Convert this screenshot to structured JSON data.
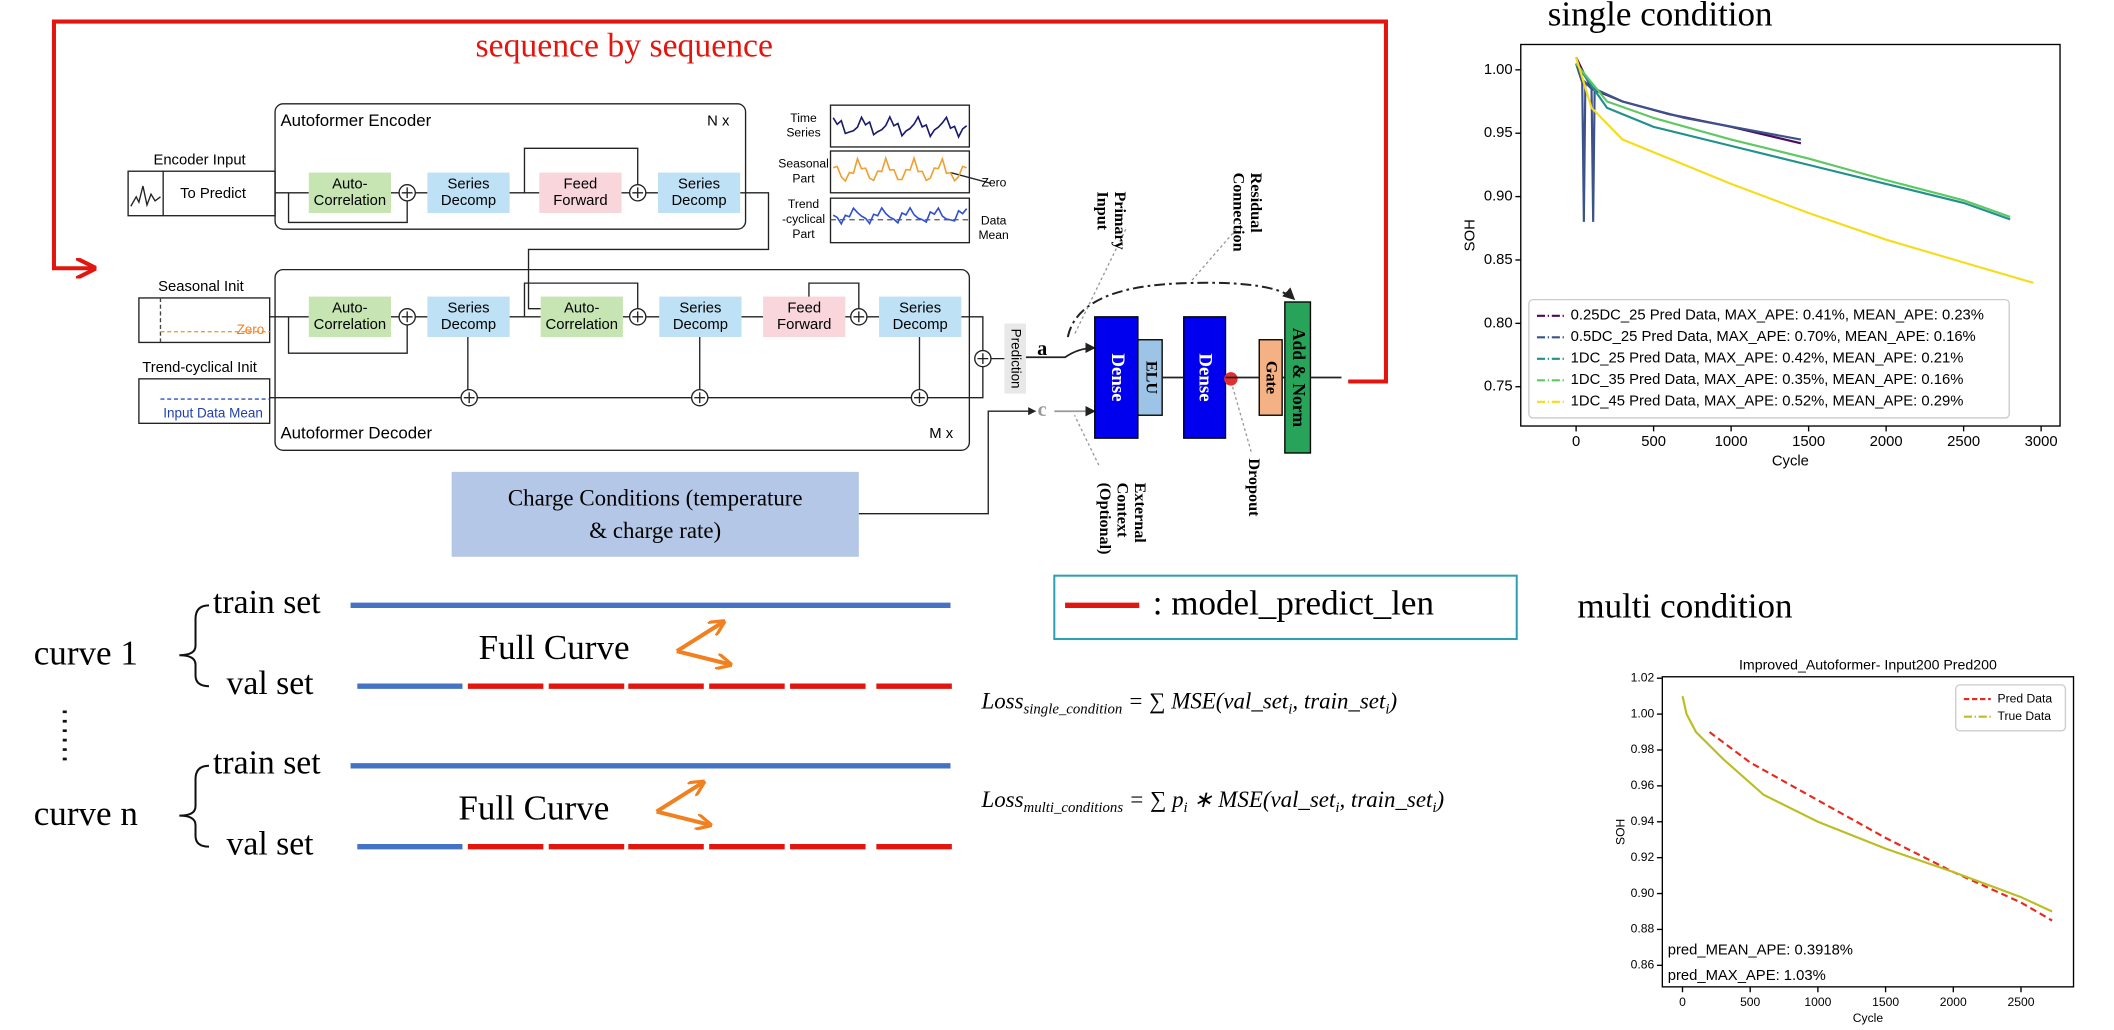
{
  "loop_label": "sequence by sequence",
  "encoder": {
    "title": "Autoformer Encoder",
    "repeat": "N x",
    "input_label": "Encoder Input",
    "input_box": "To Predict",
    "blocks": [
      [
        "Auto-",
        "Correlation"
      ],
      [
        "Series",
        "Decomp"
      ],
      [
        "Feed",
        "Forward"
      ],
      [
        "Series",
        "Decomp"
      ]
    ]
  },
  "decoder": {
    "title": "Autoformer Decoder",
    "repeat": "M x",
    "seasonal_label": "Seasonal Init",
    "seasonal_zero": "Zero",
    "trend_label": "Trend-cyclical Init",
    "trend_mean": "Input Data Mean",
    "blocks": [
      [
        "Auto-",
        "Correlation"
      ],
      [
        "Series",
        "Decomp"
      ],
      [
        "Auto-",
        "Correlation"
      ],
      [
        "Series",
        "Decomp"
      ],
      [
        "Feed",
        "Forward"
      ],
      [
        "Series",
        "Decomp"
      ]
    ],
    "output": "Prediction"
  },
  "decomposition_legend": {
    "rows": [
      [
        "Time",
        "Series"
      ],
      [
        "Seasonal",
        "Part"
      ],
      [
        "Trend",
        "-cyclical",
        "Part"
      ]
    ],
    "zero": "Zero",
    "mean": [
      "Data",
      "Mean"
    ]
  },
  "charge_conditions": [
    "Charge Conditions (temperature",
    "& charge rate)"
  ],
  "grn": {
    "primary_input": [
      "Primary",
      "Input"
    ],
    "residual": [
      "Residual",
      "Connection"
    ],
    "context": [
      "External",
      "Context",
      "(Optional)"
    ],
    "dropout": "Dropout",
    "input_a": "a",
    "input_c": "c",
    "layers": [
      "Dense",
      "ELU",
      "Dense",
      "Gate",
      "Add & Norm"
    ]
  },
  "legend_note": ": model_predict_len",
  "curves": [
    {
      "name": "curve 1",
      "train": "train set",
      "val": "val set",
      "full": "Full Curve"
    },
    {
      "name": "curve n",
      "train": "train set",
      "val": "val set",
      "full": "Full Curve"
    }
  ],
  "losses": [
    [
      {
        "t": "Loss"
      },
      {
        "t": "single_condition",
        "sub": true
      },
      {
        "t": " = ∑ MSE(val_set"
      },
      {
        "t": "i",
        "sub": true
      },
      {
        "t": ", train_set"
      },
      {
        "t": "i",
        "sub": true
      },
      {
        "t": ")"
      }
    ],
    [
      {
        "t": "Loss"
      },
      {
        "t": "multi_conditions",
        "sub": true
      },
      {
        "t": " = ∑ p"
      },
      {
        "t": "i",
        "sub": true
      },
      {
        "t": " ∗ MSE(val_set"
      },
      {
        "t": "i",
        "sub": true
      },
      {
        "t": ", train_set"
      },
      {
        "t": "i",
        "sub": true
      },
      {
        "t": ")"
      }
    ]
  ],
  "chart_data": [
    {
      "type": "line",
      "title": "single condition",
      "xlabel": "Cycle",
      "ylabel": "SOH",
      "xlim": [
        -357,
        3122
      ],
      "ylim": [
        0.719,
        1.02
      ],
      "xticks": [
        0,
        500,
        1000,
        1500,
        2000,
        2500,
        3000
      ],
      "yticks": [
        0.75,
        {
          "value": 0.8,
          "label": "0.80"
        },
        0.85,
        {
          "value": 0.9,
          "label": "0.90"
        },
        0.95,
        {
          "value": 1,
          "label": "1.00"
        }
      ],
      "legend": "lower left",
      "series": [
        {
          "name": "0.25DC_25 Pred Data, MAX_APE: 0.41%, MEAN_APE: 0.23%",
          "color": "#4b0c5c",
          "x": [
            0,
            100,
            300,
            600,
            1000,
            1450
          ],
          "values": [
            1.01,
            0.985,
            0.975,
            0.965,
            0.955,
            0.942
          ]
        },
        {
          "name": "0.5DC_25 Pred Data, MAX_APE: 0.70%, MEAN_APE: 0.16%",
          "color": "#3b528b",
          "x": [
            0,
            40,
            50,
            60,
            100,
            110,
            120,
            300,
            700,
            1450
          ],
          "values": [
            1.005,
            0.99,
            0.88,
            0.99,
            0.985,
            0.88,
            0.985,
            0.975,
            0.962,
            0.945
          ]
        },
        {
          "name": "1DC_25 Pred Data, MAX_APE: 0.42%, MEAN_APE: 0.21%",
          "color": "#21918c",
          "x": [
            0,
            200,
            500,
            1000,
            1500,
            2000,
            2500,
            2800
          ],
          "values": [
            1.005,
            0.97,
            0.955,
            0.94,
            0.925,
            0.91,
            0.895,
            0.882
          ]
        },
        {
          "name": "1DC_35 Pred Data, MAX_APE: 0.35%, MEAN_APE: 0.16%",
          "color": "#5ec962",
          "x": [
            0,
            200,
            500,
            1000,
            1500,
            2000,
            2500,
            2800
          ],
          "values": [
            1.005,
            0.975,
            0.962,
            0.945,
            0.93,
            0.913,
            0.897,
            0.884
          ]
        },
        {
          "name": "1DC_45 Pred Data, MAX_APE: 0.52%, MEAN_APE: 0.29%",
          "color": "#f5dc1c",
          "x": [
            0,
            100,
            300,
            600,
            1000,
            1500,
            2000,
            2500,
            2950
          ],
          "values": [
            1.01,
            0.97,
            0.945,
            0.93,
            0.91,
            0.887,
            0.866,
            0.848,
            0.832
          ]
        }
      ]
    },
    {
      "type": "line",
      "heading": "multi condition",
      "title": "Improved_Autoformer- Input200  Pred200",
      "xlabel": "Cycle",
      "ylabel": "SOH",
      "xlim": [
        -149,
        2888
      ],
      "ylim": [
        0.848,
        1.0208
      ],
      "xticks": [
        0,
        500,
        1000,
        1500,
        2000,
        2500
      ],
      "yticks": [
        0.86,
        0.88,
        {
          "value": 0.9,
          "label": "0.90"
        },
        0.92,
        0.94,
        0.96,
        0.98,
        {
          "value": 1,
          "label": "1.00"
        },
        1.02
      ],
      "legend": "upper right",
      "annotations": [
        "pred_MEAN_APE: 0.3918%",
        "pred_MAX_APE: 1.03%"
      ],
      "series": [
        {
          "name": "Pred Data",
          "color": "#e8291c",
          "style": "dashed",
          "x": [
            200,
            500,
            1000,
            1500,
            2000,
            2500,
            2730
          ],
          "values": [
            0.99,
            0.973,
            0.952,
            0.931,
            0.912,
            0.895,
            0.885
          ]
        },
        {
          "name": "True Data",
          "color": "#bcbd22",
          "style": "solid",
          "x": [
            0,
            30,
            100,
            300,
            600,
            1000,
            1500,
            2000,
            2500,
            2730
          ],
          "values": [
            1.01,
            1.0,
            0.99,
            0.975,
            0.955,
            0.94,
            0.925,
            0.912,
            0.898,
            0.89
          ]
        }
      ]
    }
  ]
}
